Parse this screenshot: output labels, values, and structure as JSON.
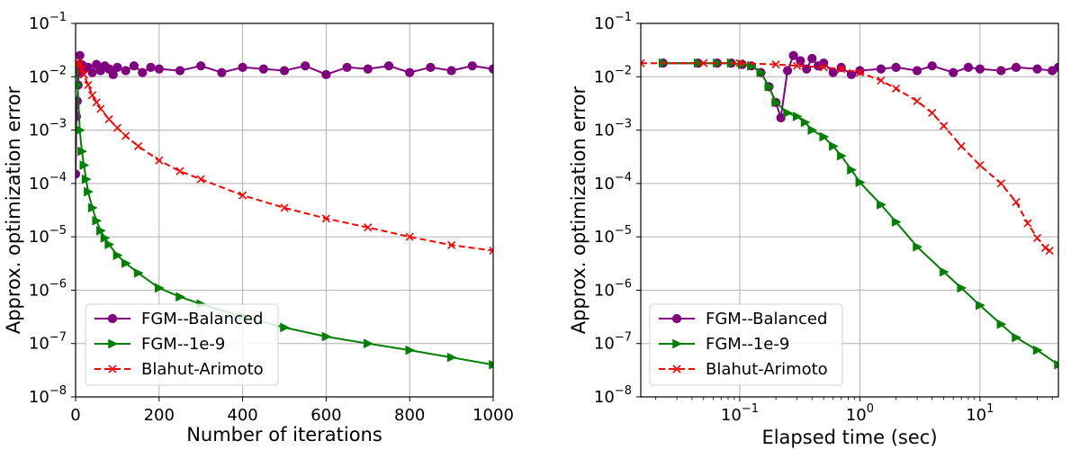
{
  "colors": {
    "balanced": "#800080",
    "fgm": "#008000",
    "blahut": "#ff0000",
    "grid": "#b0b0b0"
  },
  "chart_data": [
    {
      "type": "line",
      "xscale": "linear",
      "yscale": "log",
      "xlabel": "Number of iterations",
      "ylabel": "Approx. optimization error",
      "xlim": [
        0,
        1000
      ],
      "ylim": [
        1e-08,
        0.1
      ],
      "xticks": [
        {
          "value": 0,
          "label": "0"
        },
        {
          "value": 200,
          "label": "200"
        },
        {
          "value": 400,
          "label": "400"
        },
        {
          "value": 600,
          "label": "600"
        },
        {
          "value": 800,
          "label": "800"
        },
        {
          "value": 1000,
          "label": "1000"
        }
      ],
      "yticks": [
        {
          "value": 1e-08,
          "base": "10",
          "exp": "−8"
        },
        {
          "value": 1e-07,
          "base": "10",
          "exp": "−7"
        },
        {
          "value": 1e-06,
          "base": "10",
          "exp": "−6"
        },
        {
          "value": 1e-05,
          "base": "10",
          "exp": "−5"
        },
        {
          "value": 0.0001,
          "base": "10",
          "exp": "−4"
        },
        {
          "value": 0.001,
          "base": "10",
          "exp": "−3"
        },
        {
          "value": 0.01,
          "base": "10",
          "exp": "−2"
        },
        {
          "value": 0.1,
          "base": "10",
          "exp": "−1"
        }
      ],
      "legend_position": "lower-left",
      "series": [
        {
          "name": "FGM--Balanced",
          "color": "#800080",
          "marker": "circle",
          "linestyle": "solid",
          "x": [
            0,
            2,
            4,
            6,
            8,
            10,
            12,
            14,
            16,
            18,
            20,
            30,
            40,
            50,
            60,
            70,
            80,
            90,
            100,
            120,
            140,
            160,
            180,
            200,
            250,
            300,
            350,
            400,
            450,
            500,
            550,
            600,
            650,
            700,
            750,
            800,
            850,
            900,
            950,
            1000
          ],
          "y": [
            0.00015,
            0.0018,
            0.0035,
            0.007,
            0.012,
            0.025,
            0.015,
            0.017,
            0.013,
            0.016,
            0.014,
            0.015,
            0.012,
            0.017,
            0.013,
            0.016,
            0.014,
            0.011,
            0.015,
            0.013,
            0.016,
            0.012,
            0.015,
            0.014,
            0.013,
            0.016,
            0.012,
            0.015,
            0.014,
            0.013,
            0.016,
            0.011,
            0.015,
            0.014,
            0.016,
            0.012,
            0.015,
            0.013,
            0.016,
            0.014
          ]
        },
        {
          "name": "FGM--1e-9",
          "color": "#008000",
          "marker": "triangle-right",
          "linestyle": "solid",
          "x": [
            2,
            5,
            10,
            15,
            20,
            25,
            30,
            40,
            50,
            60,
            70,
            80,
            100,
            120,
            150,
            200,
            250,
            300,
            400,
            500,
            600,
            700,
            800,
            900,
            1000
          ],
          "y": [
            0.018,
            0.007,
            0.001,
            0.0004,
            0.00022,
            0.00012,
            7e-05,
            3.5e-05,
            2e-05,
            1.3e-05,
            9.5e-06,
            7.2e-06,
            4.5e-06,
            3.2e-06,
            2.1e-06,
            1.1e-06,
            7.5e-07,
            5.5e-07,
            3.2e-07,
            2e-07,
            1.35e-07,
            1e-07,
            7.5e-08,
            5.5e-08,
            4e-08
          ]
        },
        {
          "name": "Blahut-Arimoto",
          "color": "#ff0000",
          "marker": "x",
          "linestyle": "dashed",
          "x": [
            2,
            5,
            10,
            15,
            20,
            30,
            40,
            50,
            60,
            80,
            100,
            120,
            150,
            200,
            250,
            300,
            400,
            500,
            600,
            700,
            800,
            900,
            1000
          ],
          "y": [
            0.018,
            0.019,
            0.017,
            0.014,
            0.011,
            0.007,
            0.0045,
            0.0033,
            0.0025,
            0.0016,
            0.0011,
            0.00078,
            0.0005,
            0.00027,
            0.00017,
            0.00012,
            6e-05,
            3.5e-05,
            2.2e-05,
            1.5e-05,
            1e-05,
            7e-06,
            5.5e-06
          ]
        }
      ]
    },
    {
      "type": "line",
      "xscale": "log",
      "yscale": "log",
      "xlabel": "Elapsed time (sec)",
      "ylabel": "Approx. optimization error",
      "xlim": [
        0.015,
        45
      ],
      "ylim": [
        1e-08,
        0.1
      ],
      "xticks": [
        {
          "value": 0.1,
          "base": "10",
          "exp": "−1"
        },
        {
          "value": 1,
          "base": "10",
          "exp": "0"
        },
        {
          "value": 10,
          "base": "10",
          "exp": "1"
        }
      ],
      "yticks": [
        {
          "value": 1e-08,
          "base": "10",
          "exp": "−8"
        },
        {
          "value": 1e-07,
          "base": "10",
          "exp": "−7"
        },
        {
          "value": 1e-06,
          "base": "10",
          "exp": "−6"
        },
        {
          "value": 1e-05,
          "base": "10",
          "exp": "−5"
        },
        {
          "value": 0.0001,
          "base": "10",
          "exp": "−4"
        },
        {
          "value": 0.001,
          "base": "10",
          "exp": "−3"
        },
        {
          "value": 0.01,
          "base": "10",
          "exp": "−2"
        },
        {
          "value": 0.1,
          "base": "10",
          "exp": "−1"
        }
      ],
      "legend_position": "lower-left",
      "series": [
        {
          "name": "FGM--Balanced",
          "color": "#800080",
          "marker": "circle",
          "linestyle": "solid",
          "x": [
            0.023,
            0.045,
            0.065,
            0.085,
            0.105,
            0.125,
            0.15,
            0.175,
            0.2,
            0.22,
            0.25,
            0.28,
            0.32,
            0.36,
            0.4,
            0.45,
            0.5,
            0.6,
            0.7,
            0.85,
            1.0,
            1.5,
            2,
            3,
            4,
            6,
            8,
            10,
            15,
            20,
            30,
            40,
            45
          ],
          "y": [
            0.018,
            0.018,
            0.018,
            0.018,
            0.017,
            0.016,
            0.012,
            0.0065,
            0.0033,
            0.0017,
            0.013,
            0.025,
            0.02,
            0.014,
            0.022,
            0.016,
            0.018,
            0.012,
            0.015,
            0.011,
            0.013,
            0.014,
            0.015,
            0.013,
            0.016,
            0.012,
            0.015,
            0.014,
            0.013,
            0.015,
            0.014,
            0.013,
            0.015
          ]
        },
        {
          "name": "FGM--1e-9",
          "color": "#008000",
          "marker": "triangle-right",
          "linestyle": "solid",
          "x": [
            0.023,
            0.045,
            0.065,
            0.085,
            0.105,
            0.125,
            0.15,
            0.175,
            0.2,
            0.25,
            0.3,
            0.35,
            0.4,
            0.5,
            0.6,
            0.7,
            0.85,
            1.0,
            1.5,
            2,
            3,
            5,
            7,
            10,
            15,
            20,
            30,
            45
          ],
          "y": [
            0.018,
            0.018,
            0.018,
            0.018,
            0.017,
            0.016,
            0.012,
            0.0065,
            0.0033,
            0.0021,
            0.0018,
            0.0014,
            0.001,
            0.00075,
            0.0005,
            0.00033,
            0.00018,
            0.000105,
            4e-05,
            1.9e-05,
            6.5e-06,
            2.2e-06,
            1.1e-06,
            5.2e-07,
            2.3e-07,
            1.3e-07,
            7.5e-08,
            4e-08
          ]
        },
        {
          "name": "Blahut-Arimoto",
          "color": "#ff0000",
          "marker": "x",
          "linestyle": "dashed",
          "x": [
            0.015,
            0.05,
            0.1,
            0.2,
            0.3,
            0.5,
            0.7,
            1.0,
            1.5,
            2,
            3,
            4,
            5,
            7,
            10,
            15,
            20,
            25,
            30,
            35,
            38
          ],
          "y": [
            0.018,
            0.018,
            0.018,
            0.017,
            0.016,
            0.015,
            0.014,
            0.012,
            0.0085,
            0.006,
            0.0035,
            0.0021,
            0.0012,
            0.0005,
            0.00022,
            0.0001,
            4.5e-05,
            1.8e-05,
            9.5e-06,
            6.2e-06,
            5.5e-06
          ]
        }
      ]
    }
  ]
}
